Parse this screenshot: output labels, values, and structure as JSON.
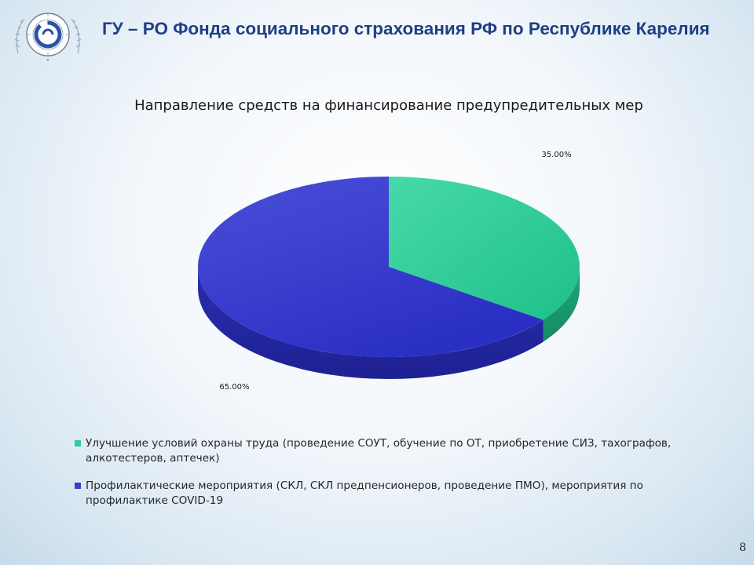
{
  "header": {
    "title": "ГУ – РО Фонда социального страхования РФ по Республике Карелия"
  },
  "logo": {
    "icon": "fss-emblem-logo"
  },
  "chart_data": {
    "type": "pie",
    "title": "Направление средств на финансирование предупредительных мер",
    "labels": [
      "Улучшение условий охраны труда (проведение СОУТ, обучение по ОТ, приобретение СИЗ, тахографов, алкотестеров, аптечек)",
      "Профилактические мероприятия (СКЛ, СКЛ предпенсионеров, проведение ПМО), мероприятия по профилактике COVID-19"
    ],
    "values": [
      35,
      65
    ],
    "data_labels": [
      "35.00%",
      "65.00%"
    ],
    "colors": [
      "#2ecc9a",
      "#3a3ec9"
    ],
    "legend_position": "bottom"
  },
  "page": {
    "number": "8"
  }
}
